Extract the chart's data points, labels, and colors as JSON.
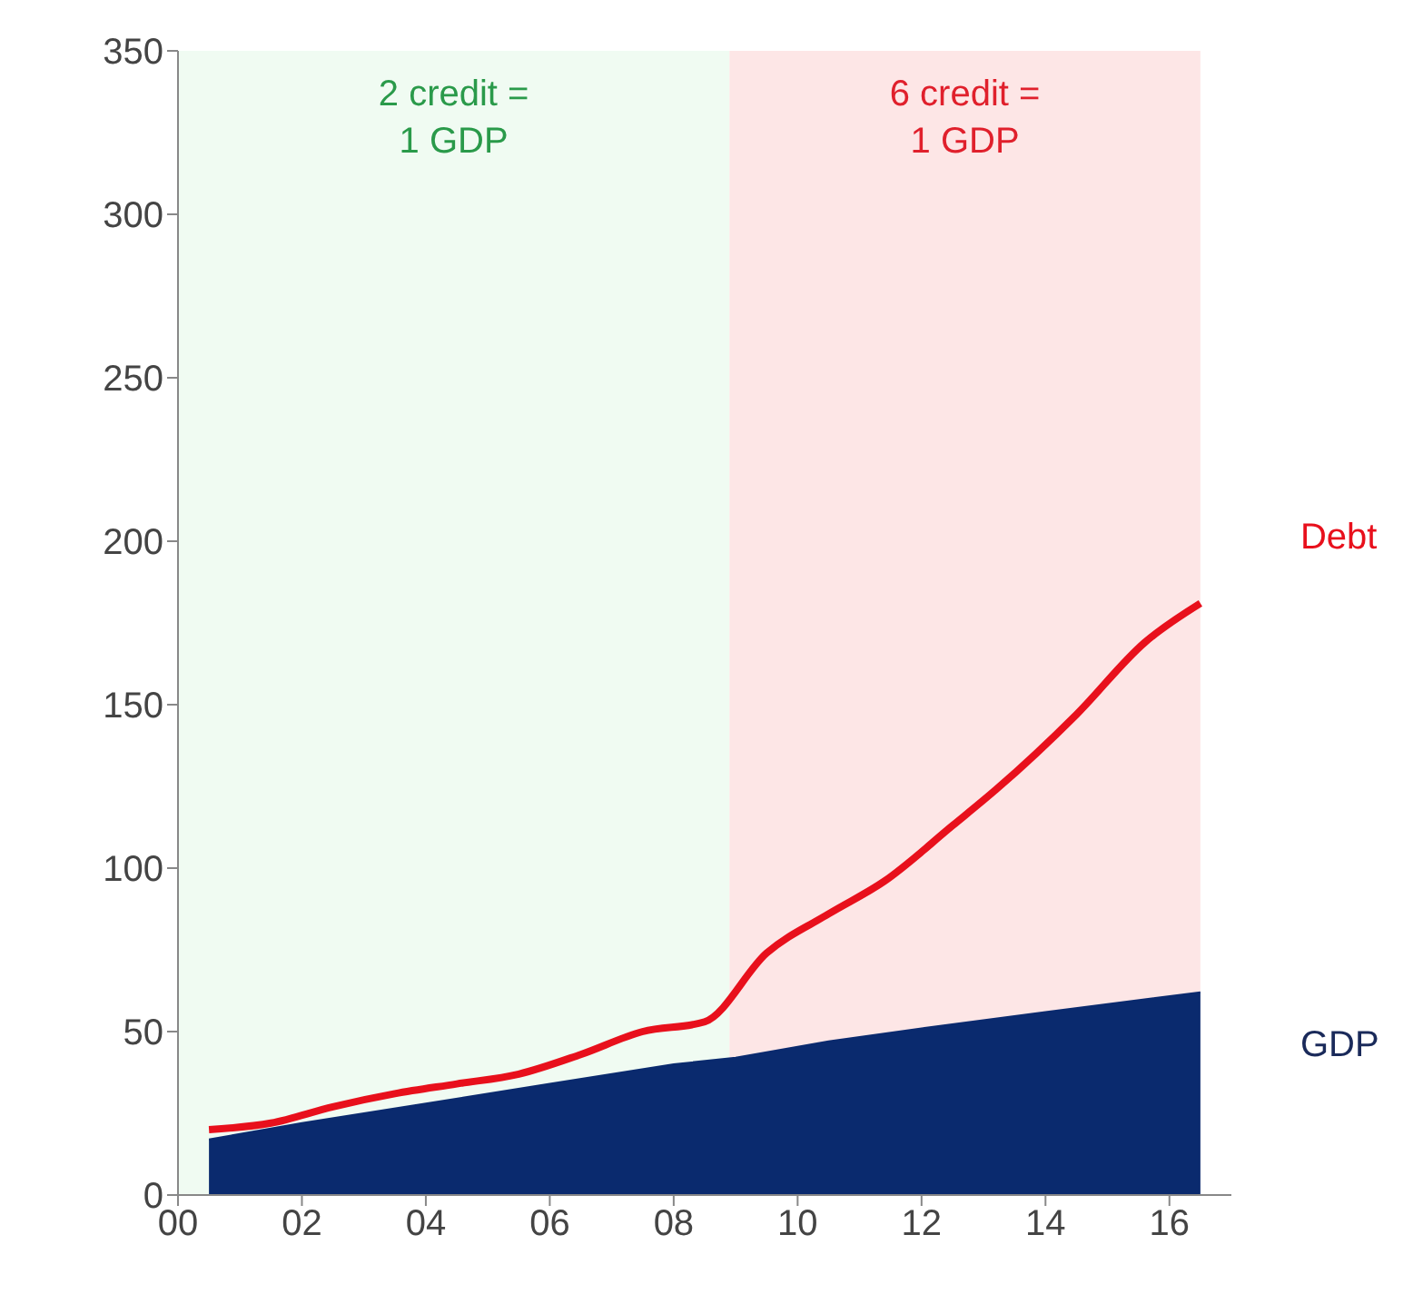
{
  "chart_data": {
    "type": "line",
    "xlim": [
      0,
      17
    ],
    "xticks": [
      {
        "value": 0,
        "label": "00"
      },
      {
        "value": 2,
        "label": "02"
      },
      {
        "value": 4,
        "label": "04"
      },
      {
        "value": 6,
        "label": "06"
      },
      {
        "value": 8,
        "label": "08"
      },
      {
        "value": 10,
        "label": "10"
      },
      {
        "value": 12,
        "label": "12"
      },
      {
        "value": 14,
        "label": "14"
      },
      {
        "value": 16,
        "label": "16"
      }
    ],
    "ylim": [
      0,
      350
    ],
    "yticks": [
      0,
      50,
      100,
      150,
      200,
      250,
      300,
      350
    ],
    "series": [
      {
        "name": "GDP",
        "type": "area",
        "color": "#0a2a6e",
        "x": [
          0.5,
          2,
          4,
          6,
          8,
          9,
          10.5,
          12,
          14,
          16.5
        ],
        "values": [
          17,
          22,
          28,
          34,
          40,
          42,
          47,
          51,
          56,
          62
        ]
      },
      {
        "name": "Debt",
        "color": "#e8101c",
        "x": [
          0.5,
          1.5,
          2.5,
          3.5,
          4.5,
          5.5,
          6.5,
          7.5,
          8.5,
          9.5,
          10.5,
          11.4,
          12.5,
          13.2,
          14.5,
          15.6,
          16.5
        ],
        "values": [
          20,
          22,
          27,
          31,
          34,
          37,
          43,
          50,
          53,
          74,
          86,
          96,
          113,
          124,
          147,
          169,
          181
        ]
      }
    ],
    "bands": [
      {
        "axis": "x",
        "from": 0,
        "to": 8.9,
        "label": "2 credit =\n1 GDP",
        "color": "#f0fbf2"
      },
      {
        "axis": "x",
        "from": 8.9,
        "to": 16.5,
        "label": "6 credit =\n1 GDP",
        "color": "#fde6e6"
      }
    ]
  }
}
